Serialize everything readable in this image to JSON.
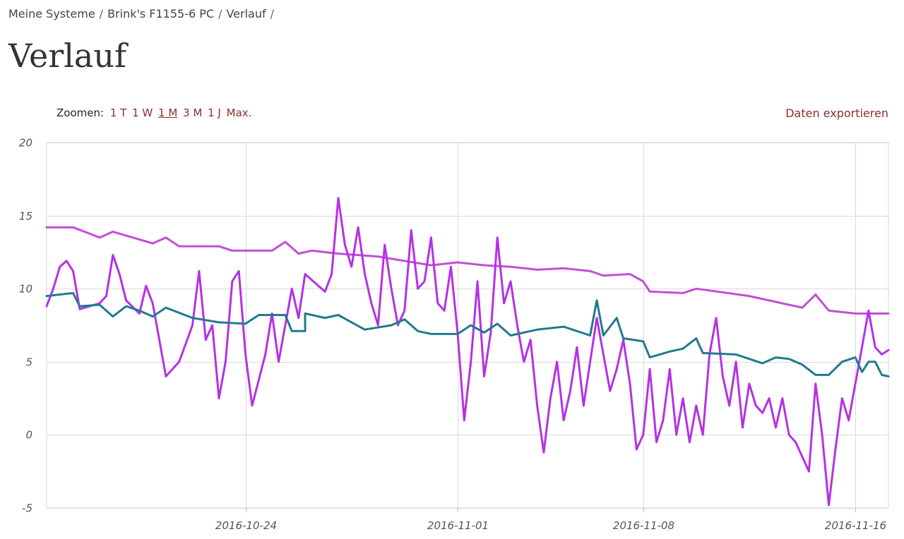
{
  "breadcrumb": {
    "items": [
      "Meine Systeme",
      "Brink's F1155-6 PC",
      "Verlauf"
    ],
    "separator": "/"
  },
  "page_title": "Verlauf",
  "zoom": {
    "label": "Zoomen:",
    "options": [
      "1 T",
      "1 W",
      "1 M",
      "3 M",
      "1 J",
      "Max."
    ],
    "active": "1 M"
  },
  "export_label": "Daten exportieren",
  "colors": {
    "link": "#8b2e2e",
    "grid": "#d9d9d9",
    "series_upper": "#c24fd6",
    "series_outdoor": "#b531e6",
    "series_teal": "#227a8f"
  },
  "chart_data": {
    "type": "line",
    "title": "",
    "xlabel": "",
    "ylabel": "",
    "ylim": [
      -5,
      20
    ],
    "yticks": [
      -5,
      0,
      5,
      10,
      15,
      20
    ],
    "xlim": [
      "2016-10-16T12:00",
      "2016-11-17T06:00"
    ],
    "xticks": [
      "2016-10-24",
      "2016-11-01",
      "2016-11-08",
      "2016-11-16"
    ],
    "grid": true,
    "legend": "none",
    "series": [
      {
        "color": "#c24fd6",
        "points": [
          [
            "2016-10-16T12:00",
            14.2
          ],
          [
            "2016-10-17T12:00",
            14.2
          ],
          [
            "2016-10-18T12:00",
            13.5
          ],
          [
            "2016-10-19T00:00",
            13.9
          ],
          [
            "2016-10-20T12:00",
            13.1
          ],
          [
            "2016-10-21T00:00",
            13.5
          ],
          [
            "2016-10-21T12:00",
            12.9
          ],
          [
            "2016-10-23T00:00",
            12.9
          ],
          [
            "2016-10-23T12:00",
            12.6
          ],
          [
            "2016-10-25T00:00",
            12.6
          ],
          [
            "2016-10-25T12:00",
            13.2
          ],
          [
            "2016-10-26T00:00",
            12.4
          ],
          [
            "2016-10-26T12:00",
            12.6
          ],
          [
            "2016-10-27T12:00",
            12.4
          ],
          [
            "2016-10-29T00:00",
            12.2
          ],
          [
            "2016-10-30T00:00",
            11.9
          ],
          [
            "2016-10-31T00:00",
            11.6
          ],
          [
            "2016-11-01T00:00",
            11.8
          ],
          [
            "2016-11-02T00:00",
            11.6
          ],
          [
            "2016-11-03T00:00",
            11.5
          ],
          [
            "2016-11-04T00:00",
            11.3
          ],
          [
            "2016-11-05T00:00",
            11.4
          ],
          [
            "2016-11-06T00:00",
            11.2
          ],
          [
            "2016-11-06T12:00",
            10.9
          ],
          [
            "2016-11-07T12:00",
            11.0
          ],
          [
            "2016-11-08T00:00",
            10.5
          ],
          [
            "2016-11-08T06:00",
            9.8
          ],
          [
            "2016-11-09T12:00",
            9.7
          ],
          [
            "2016-11-10T00:00",
            10.0
          ],
          [
            "2016-11-12T00:00",
            9.5
          ],
          [
            "2016-11-14T00:00",
            8.7
          ],
          [
            "2016-11-14T12:00",
            9.6
          ],
          [
            "2016-11-15T00:00",
            8.5
          ],
          [
            "2016-11-16T00:00",
            8.3
          ],
          [
            "2016-11-17T06:00",
            8.3
          ]
        ]
      },
      {
        "color": "#b531e6",
        "points": [
          [
            "2016-10-16T12:00",
            8.8
          ],
          [
            "2016-10-16T18:00",
            10.0
          ],
          [
            "2016-10-17T00:00",
            11.5
          ],
          [
            "2016-10-17T06:00",
            11.9
          ],
          [
            "2016-10-17T12:00",
            11.2
          ],
          [
            "2016-10-17T18:00",
            8.6
          ],
          [
            "2016-10-18T12:00",
            9.0
          ],
          [
            "2016-10-18T18:00",
            9.5
          ],
          [
            "2016-10-19T00:00",
            12.3
          ],
          [
            "2016-10-19T06:00",
            11.0
          ],
          [
            "2016-10-19T12:00",
            9.2
          ],
          [
            "2016-10-20T00:00",
            8.3
          ],
          [
            "2016-10-20T06:00",
            10.2
          ],
          [
            "2016-10-20T12:00",
            9.0
          ],
          [
            "2016-10-20T18:00",
            6.5
          ],
          [
            "2016-10-21T00:00",
            4.0
          ],
          [
            "2016-10-21T12:00",
            5.0
          ],
          [
            "2016-10-22T00:00",
            7.5
          ],
          [
            "2016-10-22T06:00",
            11.2
          ],
          [
            "2016-10-22T12:00",
            6.5
          ],
          [
            "2016-10-22T18:00",
            7.5
          ],
          [
            "2016-10-23T00:00",
            2.5
          ],
          [
            "2016-10-23T06:00",
            5.0
          ],
          [
            "2016-10-23T12:00",
            10.5
          ],
          [
            "2016-10-23T18:00",
            11.2
          ],
          [
            "2016-10-24T00:00",
            5.5
          ],
          [
            "2016-10-24T06:00",
            2.0
          ],
          [
            "2016-10-24T18:00",
            5.5
          ],
          [
            "2016-10-25T00:00",
            8.3
          ],
          [
            "2016-10-25T06:00",
            5.0
          ],
          [
            "2016-10-25T12:00",
            7.5
          ],
          [
            "2016-10-25T18:00",
            10.0
          ],
          [
            "2016-10-26T00:00",
            8.0
          ],
          [
            "2016-10-26T06:00",
            11.0
          ],
          [
            "2016-10-26T18:00",
            10.2
          ],
          [
            "2016-10-27T00:00",
            9.8
          ],
          [
            "2016-10-27T06:00",
            11.0
          ],
          [
            "2016-10-27T12:00",
            16.2
          ],
          [
            "2016-10-27T18:00",
            13.0
          ],
          [
            "2016-10-28T00:00",
            11.5
          ],
          [
            "2016-10-28T06:00",
            14.2
          ],
          [
            "2016-10-28T12:00",
            11.0
          ],
          [
            "2016-10-28T18:00",
            9.0
          ],
          [
            "2016-10-29T00:00",
            7.5
          ],
          [
            "2016-10-29T06:00",
            13.0
          ],
          [
            "2016-10-29T12:00",
            10.0
          ],
          [
            "2016-10-29T18:00",
            7.5
          ],
          [
            "2016-10-30T00:00",
            8.5
          ],
          [
            "2016-10-30T06:00",
            14.0
          ],
          [
            "2016-10-30T12:00",
            10.0
          ],
          [
            "2016-10-30T18:00",
            10.5
          ],
          [
            "2016-10-31T00:00",
            13.5
          ],
          [
            "2016-10-31T06:00",
            9.0
          ],
          [
            "2016-10-31T12:00",
            8.5
          ],
          [
            "2016-10-31T18:00",
            11.5
          ],
          [
            "2016-11-01T00:00",
            7.0
          ],
          [
            "2016-11-01T06:00",
            1.0
          ],
          [
            "2016-11-01T12:00",
            5.0
          ],
          [
            "2016-11-01T18:00",
            10.5
          ],
          [
            "2016-11-02T00:00",
            4.0
          ],
          [
            "2016-11-02T06:00",
            7.0
          ],
          [
            "2016-11-02T12:00",
            13.5
          ],
          [
            "2016-11-02T18:00",
            9.0
          ],
          [
            "2016-11-03T00:00",
            10.5
          ],
          [
            "2016-11-03T06:00",
            7.5
          ],
          [
            "2016-11-03T12:00",
            5.0
          ],
          [
            "2016-11-03T18:00",
            6.5
          ],
          [
            "2016-11-04T00:00",
            2.0
          ],
          [
            "2016-11-04T06:00",
            -1.2
          ],
          [
            "2016-11-04T12:00",
            2.5
          ],
          [
            "2016-11-04T18:00",
            5.0
          ],
          [
            "2016-11-05T00:00",
            1.0
          ],
          [
            "2016-11-05T06:00",
            3.0
          ],
          [
            "2016-11-05T12:00",
            6.0
          ],
          [
            "2016-11-05T18:00",
            2.0
          ],
          [
            "2016-11-06T00:00",
            5.0
          ],
          [
            "2016-11-06T06:00",
            8.0
          ],
          [
            "2016-11-06T12:00",
            5.5
          ],
          [
            "2016-11-06T18:00",
            3.0
          ],
          [
            "2016-11-07T00:00",
            4.5
          ],
          [
            "2016-11-07T06:00",
            6.5
          ],
          [
            "2016-11-07T12:00",
            3.5
          ],
          [
            "2016-11-07T18:00",
            -1.0
          ],
          [
            "2016-11-08T00:00",
            0.0
          ],
          [
            "2016-11-08T06:00",
            4.5
          ],
          [
            "2016-11-08T12:00",
            -0.5
          ],
          [
            "2016-11-08T18:00",
            1.0
          ],
          [
            "2016-11-09T00:00",
            4.5
          ],
          [
            "2016-11-09T06:00",
            0.0
          ],
          [
            "2016-11-09T12:00",
            2.5
          ],
          [
            "2016-11-09T18:00",
            -0.5
          ],
          [
            "2016-11-10T00:00",
            2.0
          ],
          [
            "2016-11-10T06:00",
            0.0
          ],
          [
            "2016-11-10T12:00",
            5.5
          ],
          [
            "2016-11-10T18:00",
            8.0
          ],
          [
            "2016-11-11T00:00",
            4.0
          ],
          [
            "2016-11-11T06:00",
            2.0
          ],
          [
            "2016-11-11T12:00",
            5.0
          ],
          [
            "2016-11-11T18:00",
            0.5
          ],
          [
            "2016-11-12T00:00",
            3.5
          ],
          [
            "2016-11-12T06:00",
            2.0
          ],
          [
            "2016-11-12T12:00",
            1.5
          ],
          [
            "2016-11-12T18:00",
            2.5
          ],
          [
            "2016-11-13T00:00",
            0.5
          ],
          [
            "2016-11-13T06:00",
            2.5
          ],
          [
            "2016-11-13T12:00",
            0.0
          ],
          [
            "2016-11-13T18:00",
            -0.5
          ],
          [
            "2016-11-14T00:00",
            -1.5
          ],
          [
            "2016-11-14T06:00",
            -2.5
          ],
          [
            "2016-11-14T12:00",
            3.5
          ],
          [
            "2016-11-14T18:00",
            0.0
          ],
          [
            "2016-11-15T00:00",
            -4.8
          ],
          [
            "2016-11-15T06:00",
            -1.0
          ],
          [
            "2016-11-15T12:00",
            2.5
          ],
          [
            "2016-11-15T18:00",
            1.0
          ],
          [
            "2016-11-16T00:00",
            3.5
          ],
          [
            "2016-11-16T06:00",
            6.0
          ],
          [
            "2016-11-16T12:00",
            8.5
          ],
          [
            "2016-11-16T18:00",
            6.0
          ],
          [
            "2016-11-17T00:00",
            5.5
          ],
          [
            "2016-11-17T06:00",
            5.8
          ]
        ]
      },
      {
        "color": "#227a8f",
        "points": [
          [
            "2016-10-16T12:00",
            9.5
          ],
          [
            "2016-10-17T12:00",
            9.7
          ],
          [
            "2016-10-17T18:00",
            8.8
          ],
          [
            "2016-10-18T12:00",
            8.9
          ],
          [
            "2016-10-19T00:00",
            8.1
          ],
          [
            "2016-10-19T12:00",
            8.8
          ],
          [
            "2016-10-20T00:00",
            8.5
          ],
          [
            "2016-10-20T12:00",
            8.1
          ],
          [
            "2016-10-21T00:00",
            8.7
          ],
          [
            "2016-10-22T00:00",
            8.0
          ],
          [
            "2016-10-23T00:00",
            7.7
          ],
          [
            "2016-10-24T00:00",
            7.6
          ],
          [
            "2016-10-24T12:00",
            8.2
          ],
          [
            "2016-10-25T12:00",
            8.2
          ],
          [
            "2016-10-25T18:00",
            7.1
          ],
          [
            "2016-10-26T06:00",
            7.1
          ],
          [
            "2016-10-26T06:00",
            8.3
          ],
          [
            "2016-10-27T00:00",
            8.0
          ],
          [
            "2016-10-27T12:00",
            8.2
          ],
          [
            "2016-10-28T12:00",
            7.2
          ],
          [
            "2016-10-29T12:00",
            7.5
          ],
          [
            "2016-10-30T00:00",
            7.9
          ],
          [
            "2016-10-30T12:00",
            7.1
          ],
          [
            "2016-10-31T00:00",
            6.9
          ],
          [
            "2016-11-01T00:00",
            6.9
          ],
          [
            "2016-11-01T12:00",
            7.5
          ],
          [
            "2016-11-02T00:00",
            7.0
          ],
          [
            "2016-11-02T12:00",
            7.6
          ],
          [
            "2016-11-03T00:00",
            6.8
          ],
          [
            "2016-11-03T12:00",
            7.0
          ],
          [
            "2016-11-04T00:00",
            7.2
          ],
          [
            "2016-11-05T00:00",
            7.4
          ],
          [
            "2016-11-06T00:00",
            6.8
          ],
          [
            "2016-11-06T06:00",
            9.2
          ],
          [
            "2016-11-06T12:00",
            6.8
          ],
          [
            "2016-11-07T00:00",
            8.0
          ],
          [
            "2016-11-07T06:00",
            6.6
          ],
          [
            "2016-11-08T00:00",
            6.4
          ],
          [
            "2016-11-08T06:00",
            5.3
          ],
          [
            "2016-11-09T00:00",
            5.7
          ],
          [
            "2016-11-09T12:00",
            5.9
          ],
          [
            "2016-11-10T00:00",
            6.6
          ],
          [
            "2016-11-10T06:00",
            5.6
          ],
          [
            "2016-11-11T12:00",
            5.5
          ],
          [
            "2016-11-12T00:00",
            5.2
          ],
          [
            "2016-11-12T12:00",
            4.9
          ],
          [
            "2016-11-13T00:00",
            5.3
          ],
          [
            "2016-11-13T12:00",
            5.2
          ],
          [
            "2016-11-14T00:00",
            4.8
          ],
          [
            "2016-11-14T12:00",
            4.1
          ],
          [
            "2016-11-15T00:00",
            4.1
          ],
          [
            "2016-11-15T12:00",
            5.0
          ],
          [
            "2016-11-16T00:00",
            5.3
          ],
          [
            "2016-11-16T06:00",
            4.3
          ],
          [
            "2016-11-16T12:00",
            5.0
          ],
          [
            "2016-11-16T18:00",
            5.0
          ],
          [
            "2016-11-17T00:00",
            4.1
          ],
          [
            "2016-11-17T06:00",
            4.0
          ]
        ]
      }
    ]
  }
}
